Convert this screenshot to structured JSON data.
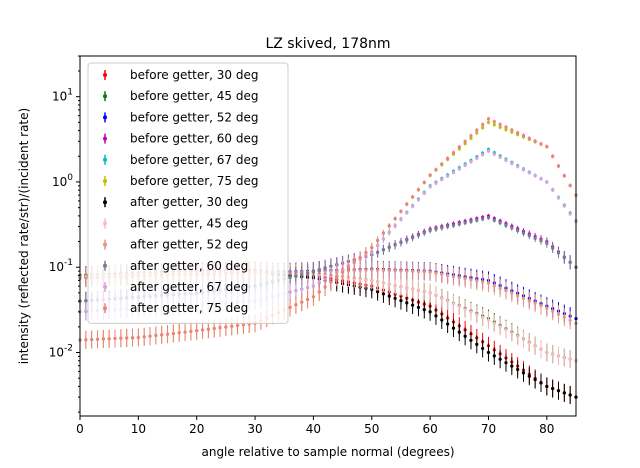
{
  "chart_data": {
    "type": "scatter",
    "title": "LZ skived, 178nm",
    "xlabel": "angle relative to sample normal (degrees)",
    "ylabel": "intensity (reflected rate/str)/(incident rate)",
    "xlim": [
      0,
      85
    ],
    "ylim": [
      0.0018,
      30
    ],
    "yscale": "log",
    "grid": false,
    "legend_position": "top-left",
    "x_ticks": [
      "0",
      "10",
      "20",
      "30",
      "40",
      "50",
      "60",
      "70",
      "80"
    ],
    "y_ticks": [
      "10^-2",
      "10^-1",
      "10^0",
      "10^1"
    ],
    "x": [
      0,
      10,
      20,
      30,
      40,
      50,
      60,
      70,
      80,
      85
    ],
    "series": [
      {
        "name": "before getter, 30 deg",
        "color": "#ff0000",
        "values": [
          0.08,
          0.085,
          0.09,
          0.092,
          0.08,
          0.06,
          0.035,
          0.012,
          0.004,
          0.003
        ]
      },
      {
        "name": "before getter, 45 deg",
        "color": "#008000",
        "values": [
          0.08,
          0.085,
          0.088,
          0.09,
          0.085,
          0.07,
          0.05,
          0.025,
          0.01,
          0.008
        ]
      },
      {
        "name": "before getter, 52 deg",
        "color": "#0000ff",
        "values": [
          0.075,
          0.08,
          0.083,
          0.086,
          0.09,
          0.095,
          0.09,
          0.07,
          0.035,
          0.025
        ]
      },
      {
        "name": "before getter, 60 deg",
        "color": "#bf00bf",
        "values": [
          0.04,
          0.045,
          0.05,
          0.06,
          0.09,
          0.14,
          0.28,
          0.4,
          0.2,
          0.1
        ]
      },
      {
        "name": "before getter, 67 deg",
        "color": "#00bfbf",
        "values": [
          0.03,
          0.033,
          0.036,
          0.04,
          0.06,
          0.15,
          0.9,
          2.4,
          1.0,
          0.35
        ]
      },
      {
        "name": "before getter, 75 deg",
        "color": "#bfbf00",
        "values": [
          0.014,
          0.015,
          0.018,
          0.022,
          0.045,
          0.17,
          1.2,
          5.0,
          2.6,
          0.7
        ]
      },
      {
        "name": "after getter, 30 deg",
        "color": "#000000",
        "values": [
          0.078,
          0.082,
          0.085,
          0.088,
          0.075,
          0.055,
          0.03,
          0.01,
          0.004,
          0.003
        ]
      },
      {
        "name": "after getter, 45 deg",
        "color": "#ffb6c1",
        "values": [
          0.078,
          0.083,
          0.086,
          0.088,
          0.083,
          0.07,
          0.05,
          0.024,
          0.01,
          0.008
        ]
      },
      {
        "name": "after getter, 52 deg",
        "color": "#e9967a",
        "values": [
          0.074,
          0.078,
          0.082,
          0.085,
          0.088,
          0.093,
          0.088,
          0.065,
          0.033,
          0.022
        ]
      },
      {
        "name": "after getter, 60 deg",
        "color": "#708090",
        "values": [
          0.04,
          0.044,
          0.05,
          0.06,
          0.088,
          0.14,
          0.27,
          0.38,
          0.19,
          0.1
        ]
      },
      {
        "name": "after getter, 67 deg",
        "color": "#dda0dd",
        "values": [
          0.03,
          0.033,
          0.036,
          0.04,
          0.06,
          0.15,
          0.88,
          2.3,
          1.0,
          0.34
        ]
      },
      {
        "name": "after getter, 75 deg",
        "color": "#f08080",
        "values": [
          0.014,
          0.015,
          0.018,
          0.022,
          0.045,
          0.17,
          1.2,
          5.5,
          2.6,
          0.7
        ]
      }
    ]
  }
}
